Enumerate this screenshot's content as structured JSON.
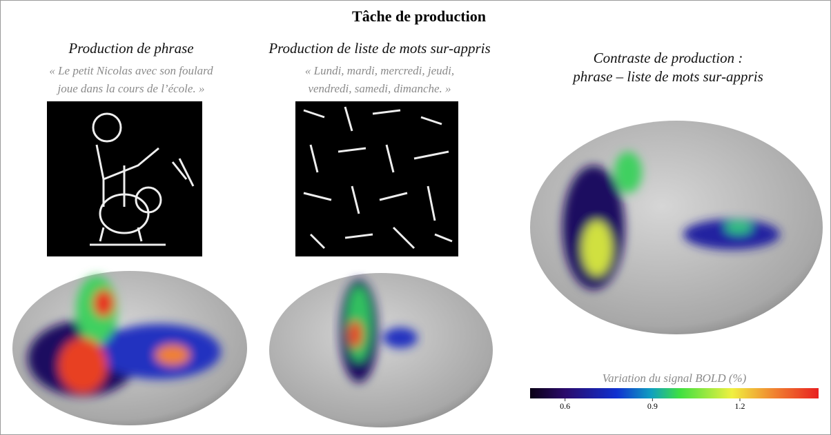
{
  "title": "Tâche de production",
  "panels": [
    {
      "title": [
        "Production de phrase"
      ],
      "quote": [
        "« Le petit Nicolas avec son foulard",
        "joue dans la cours de l’école. »"
      ]
    },
    {
      "title": [
        "Production de liste de mots sur-appris"
      ],
      "quote": [
        "« Lundi, mardi, mercredi, jeudi,",
        "vendredi, samedi, dimanche. »"
      ]
    },
    {
      "title": [
        "Contraste de production :",
        "phrase – liste de mots sur-appris"
      ]
    }
  ],
  "colorbar": {
    "label": "Variation du signal BOLD (%)",
    "range": [
      0.48,
      1.47
    ],
    "ticks": [
      0.6,
      0.9,
      1.2
    ]
  }
}
